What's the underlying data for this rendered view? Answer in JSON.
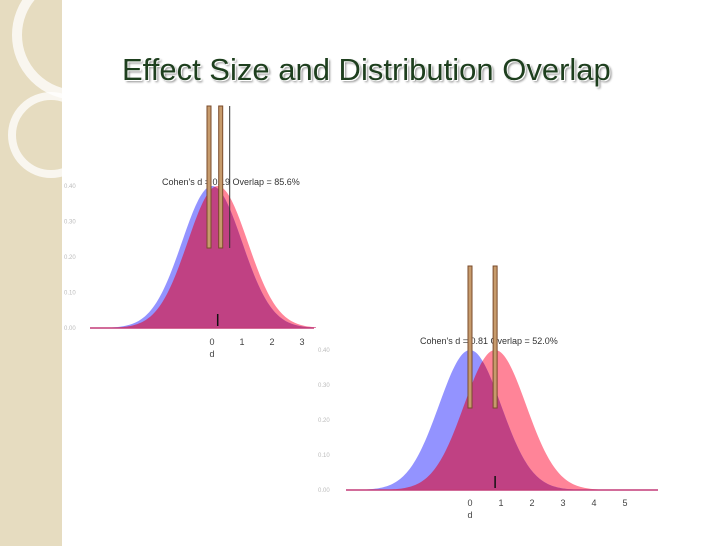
{
  "slide": {
    "title": "Effect Size and Distribution Overlap",
    "colors": {
      "band": "#e6dcc0",
      "title_text": "#1e3f1e",
      "control_fill": "#8080ff",
      "treatment_fill": "#ff6f86",
      "overlap_fill": "#c33c79",
      "marker_fill": "#c79b6c",
      "marker_stroke": "#7a4b2b"
    }
  },
  "plots": [
    {
      "caption": "Cohen's d = 0.19  Overlap = 85.6%",
      "x_tick_labels": [
        "0",
        "1",
        "2",
        "3"
      ],
      "y_tick_labels": [
        "0.40",
        "0.30",
        "0.20",
        "0.10",
        "0.00"
      ],
      "xlabel": "d"
    },
    {
      "caption": "Cohen's d = 0.81  Overlap = 52.0%",
      "x_tick_labels": [
        "0",
        "1",
        "2",
        "3",
        "4",
        "5"
      ],
      "y_tick_labels": [
        "0.40",
        "0.30",
        "0.20",
        "0.10",
        "0.00"
      ],
      "xlabel": "d"
    }
  ],
  "chart_data": [
    {
      "type": "area",
      "cohens_d": 0.19,
      "overlap_percent": 85.6,
      "x_ticks": [
        0,
        1,
        2,
        3
      ],
      "y_ticks": [
        0.0,
        0.1,
        0.2,
        0.3,
        0.4
      ],
      "ylim": [
        0,
        0.4
      ],
      "series": [
        {
          "mean": 0,
          "sd": 1
        },
        {
          "mean": 0.19,
          "sd": 1
        }
      ]
    },
    {
      "type": "area",
      "cohens_d": 0.81,
      "overlap_percent": 52.0,
      "x_ticks": [
        0,
        1,
        2,
        3,
        4,
        5
      ],
      "y_ticks": [
        0.0,
        0.1,
        0.2,
        0.3,
        0.4
      ],
      "ylim": [
        0,
        0.4
      ],
      "series": [
        {
          "mean": 0,
          "sd": 1
        },
        {
          "mean": 0.81,
          "sd": 1
        }
      ]
    }
  ]
}
